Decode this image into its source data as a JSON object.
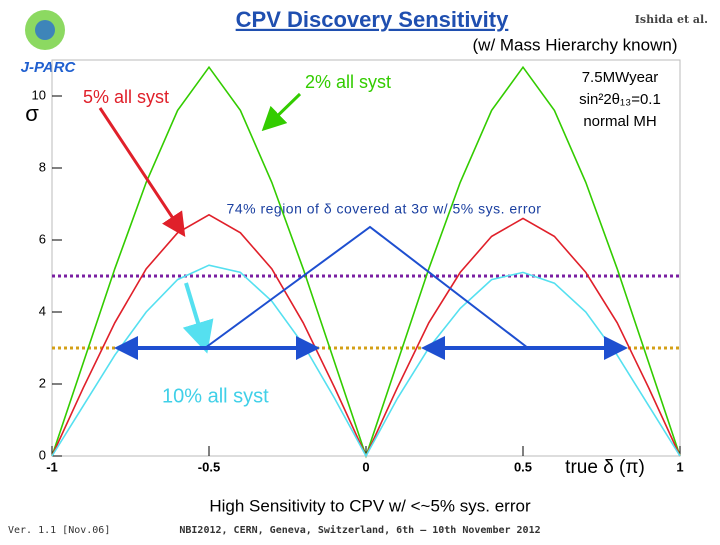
{
  "chart_data": {
    "type": "line",
    "title": "CPV Discovery Sensitivity",
    "subtitle": "(w/ Mass Hierarchy known)",
    "credit": "Ishida et al.",
    "logo": "J-PARC",
    "x_label": "true δ (π)",
    "y_label": "σ",
    "conditions": [
      "7.5MWyear",
      "sin²2θ₁₃=0.1",
      "normal MH"
    ],
    "annotation": "74% region of δ covered at 3σ w/ 5% sys. error",
    "footer": "High Sensitivity to CPV w/ <~5% sys. error",
    "version": "Ver. 1.1 [Nov.06]",
    "venue": "NBI2012, CERN, Geneva, Switzerland, 6th – 10th November 2012",
    "x": [
      -1,
      -0.9,
      -0.8,
      -0.7,
      -0.6,
      -0.5,
      -0.4,
      -0.3,
      -0.2,
      -0.1,
      0,
      0.1,
      0.2,
      0.3,
      0.4,
      0.5,
      0.6,
      0.7,
      0.8,
      0.9,
      1
    ],
    "series": [
      {
        "name": "2% all syst",
        "color": "#33cc00",
        "values": [
          0,
          2.6,
          5.2,
          7.6,
          9.6,
          10.8,
          9.6,
          7.6,
          5.2,
          2.6,
          0,
          2.6,
          5.2,
          7.6,
          9.6,
          10.8,
          9.6,
          7.6,
          5.2,
          2.6,
          0
        ]
      },
      {
        "name": "5% all syst",
        "color": "#e0202a",
        "values": [
          0,
          1.9,
          3.7,
          5.2,
          6.2,
          6.7,
          6.2,
          5.2,
          3.7,
          1.9,
          0,
          1.9,
          3.7,
          5.1,
          6.1,
          6.6,
          6.1,
          5.1,
          3.7,
          1.9,
          0
        ]
      },
      {
        "name": "10% all syst",
        "color": "#55e0f0",
        "values": [
          0,
          1.4,
          2.8,
          4.0,
          4.9,
          5.3,
          5.1,
          4.3,
          3.1,
          1.6,
          0,
          1.6,
          3.0,
          4.1,
          4.9,
          5.1,
          4.8,
          4.0,
          2.8,
          1.4,
          0
        ]
      }
    ],
    "reference_lines": [
      {
        "value": 5,
        "color": "#7a1fa2"
      },
      {
        "value": 3,
        "color": "#d4a017"
      }
    ],
    "xlim": [
      -1,
      1
    ],
    "ylim": [
      0,
      11
    ],
    "xticks": [
      -1,
      -0.5,
      0,
      0.5,
      1
    ],
    "yticks": [
      0,
      2,
      4,
      6,
      8,
      10
    ]
  }
}
